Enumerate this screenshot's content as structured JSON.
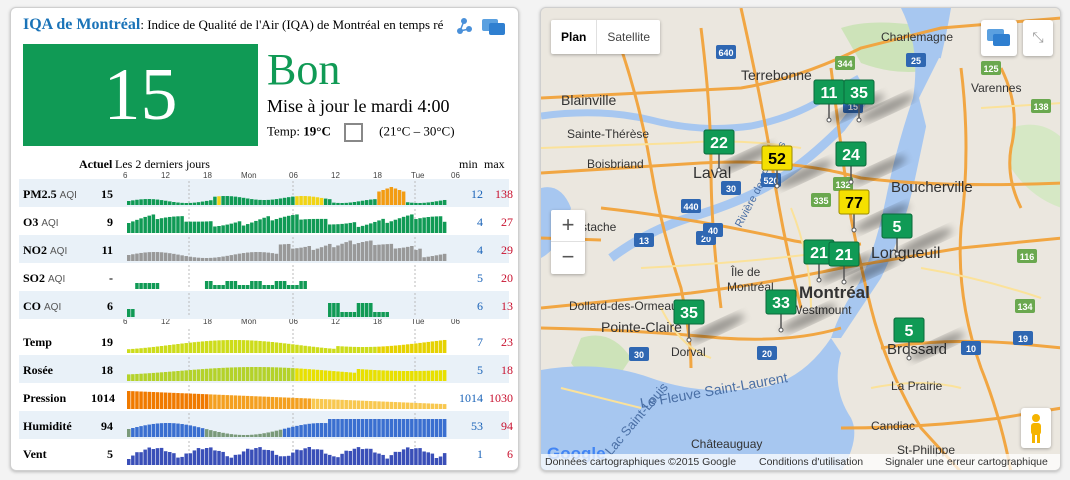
{
  "header": {
    "brand": "IQA de Montréal",
    "subtitle": ": Indice de Qualité de l'Air (IQA) de Montréal en temps réel"
  },
  "current": {
    "aqi": "15",
    "label": "Bon",
    "update": "Mise à jour le mardi 4:00",
    "temp_prefix": "Temp: ",
    "temp_value": "19°C",
    "temp_range": "(21°C – 30°C)"
  },
  "table": {
    "col_actuel": "Actuel",
    "col_range": "Les 2 derniers jours",
    "col_min": "min",
    "col_max": "max",
    "axis_labels": [
      "6",
      "12",
      "18",
      "Mon",
      "06",
      "12",
      "18",
      "Tue",
      "06"
    ],
    "rows": [
      {
        "name": "PM2.5",
        "unit": "AQI",
        "value": "15",
        "min": "12",
        "max": "138"
      },
      {
        "name": "O3",
        "unit": "AQI",
        "value": "9",
        "min": "4",
        "max": "27"
      },
      {
        "name": "NO2",
        "unit": "AQI",
        "value": "11",
        "min": "4",
        "max": "29"
      },
      {
        "name": "SO2",
        "unit": "AQI",
        "value": "-",
        "min": "5",
        "max": "20"
      },
      {
        "name": "CO",
        "unit": "AQI",
        "value": "6",
        "min": "6",
        "max": "13"
      },
      {
        "name": "Temp",
        "unit": "",
        "value": "19",
        "min": "7",
        "max": "23"
      },
      {
        "name": "Rosée",
        "unit": "",
        "value": "18",
        "min": "5",
        "max": "18"
      },
      {
        "name": "Pression",
        "unit": "",
        "value": "1014",
        "min": "1014",
        "max": "1030"
      },
      {
        "name": "Humidité",
        "unit": "",
        "value": "94",
        "min": "53",
        "max": "94"
      },
      {
        "name": "Vent",
        "unit": "",
        "value": "5",
        "min": "1",
        "max": "6"
      }
    ]
  },
  "map": {
    "type_plan": "Plan",
    "type_satellite": "Satellite",
    "zoom_in": "+",
    "zoom_out": "−",
    "google": "Google",
    "footer_data": "Données cartographiques ©2015 Google",
    "footer_terms": "Conditions d'utilisation",
    "footer_report": "Signaler une erreur cartographique",
    "places": {
      "charlemagne": "Charlemagne",
      "terrebonne": "Terrebonne",
      "varennes": "Varennes",
      "blainville": "Blainville",
      "sainte_therese": "Sainte-Thérèse",
      "boisbriand": "Boisbriand",
      "laval": "Laval",
      "boucherville": "Boucherville",
      "stache": "stache",
      "longueuil": "Longueuil",
      "ile_de": "Île de",
      "montreal_isl": "Montréal",
      "dollard": "Dollard-des-Ormeaux",
      "montreal": "Montréal",
      "westmount": "Westmount",
      "pointe_claire": "Pointe-Claire",
      "dorval": "Dorval",
      "brossard": "Brossard",
      "fleuve": "Le Fleuve Saint-Laurent",
      "st_louis": "Lac Saint-Louis",
      "riviere": "Rivière des Prairies",
      "la_prairie": "La Prairie",
      "candiac": "Candiac",
      "chateauguay": "Châteauguay",
      "st_philippe": "St-Philippe"
    },
    "shields": [
      "640",
      "25",
      "15",
      "440",
      "13",
      "20",
      "520",
      "132",
      "138",
      "30",
      "15",
      "116",
      "134",
      "10",
      "20",
      "40",
      "30",
      "19",
      "335",
      "344",
      "125"
    ],
    "markers": [
      {
        "value": "11",
        "level": "good"
      },
      {
        "value": "35",
        "level": "good"
      },
      {
        "value": "22",
        "level": "good"
      },
      {
        "value": "52",
        "level": "moderate"
      },
      {
        "value": "24",
        "level": "good"
      },
      {
        "value": "77",
        "level": "moderate"
      },
      {
        "value": "5",
        "level": "good"
      },
      {
        "value": "21",
        "level": "good"
      },
      {
        "value": "21",
        "level": "good"
      },
      {
        "value": "35",
        "level": "good"
      },
      {
        "value": "33",
        "level": "good"
      },
      {
        "value": "5",
        "level": "good"
      }
    ]
  }
}
